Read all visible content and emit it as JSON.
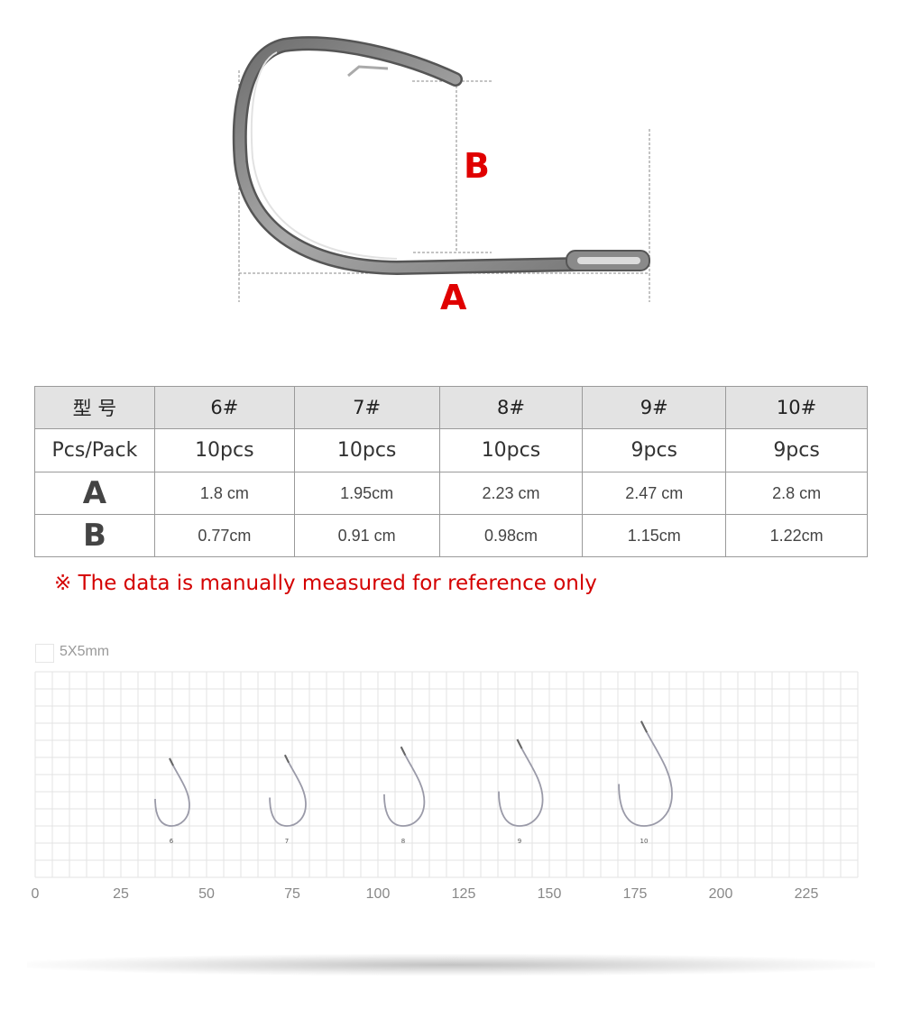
{
  "diagram": {
    "label_a": "A",
    "label_b": "B",
    "accent_color": "#e00000"
  },
  "table": {
    "header": [
      "型 号",
      "6#",
      "7#",
      "8#",
      "9#",
      "10#"
    ],
    "rows": [
      {
        "label": "Pcs/Pack",
        "values": [
          "10pcs",
          "10pcs",
          "10pcs",
          "9pcs",
          "9pcs"
        ]
      },
      {
        "label": "A",
        "values": [
          "1.8 cm",
          "1.95cm",
          "2.23 cm",
          "2.47 cm",
          "2.8 cm"
        ]
      },
      {
        "label": "B",
        "values": [
          "0.77cm",
          "0.91 cm",
          "0.98cm",
          "1.15cm",
          "1.22cm"
        ]
      }
    ]
  },
  "note": "※ The data is manually measured for reference only",
  "scale": {
    "legend": "5X5mm",
    "ticks": [
      "0",
      "25",
      "50",
      "75",
      "100",
      "125",
      "150",
      "175",
      "200",
      "225"
    ],
    "hooks": [
      {
        "label": "6",
        "size": 1.0
      },
      {
        "label": "7",
        "size": 1.05
      },
      {
        "label": "8",
        "size": 1.17
      },
      {
        "label": "9",
        "size": 1.28
      },
      {
        "label": "10",
        "size": 1.55
      }
    ]
  }
}
